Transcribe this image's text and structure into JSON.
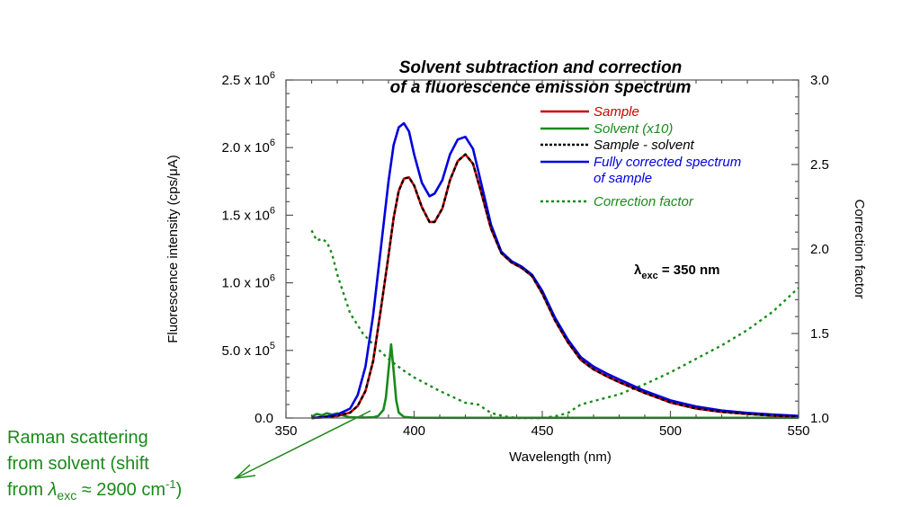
{
  "chart_data": {
    "type": "line",
    "title": [
      "Solvent subtraction and correction",
      "of a fluorescence emission spectrum"
    ],
    "xlabel": "Wavelength (nm)",
    "ylabel": "Fluorescence intensity (cps/μA)",
    "y2label": "Correction factor",
    "xlim": [
      350,
      550
    ],
    "ylim": [
      0,
      2500000
    ],
    "y2lim": [
      1.0,
      3.0
    ],
    "x_ticks": [
      350,
      400,
      450,
      500,
      550
    ],
    "x_tick_labels": [
      "350",
      "400",
      "450",
      "500",
      "550"
    ],
    "y_ticks": [
      0,
      500000,
      1000000,
      1500000,
      2000000,
      2500000
    ],
    "y_tick_labels": [
      {
        "mant": "0.0",
        "exp": ""
      },
      {
        "mant": "5.0 x 10",
        "exp": "5"
      },
      {
        "mant": "1.0 x 10",
        "exp": "6"
      },
      {
        "mant": "1.5 x 10",
        "exp": "6"
      },
      {
        "mant": "2.0 x 10",
        "exp": "6"
      },
      {
        "mant": "2.5 x 10",
        "exp": "6"
      }
    ],
    "y2_ticks": [
      1.0,
      1.5,
      2.0,
      2.5,
      3.0
    ],
    "y2_tick_labels": [
      "1.0",
      "1.5",
      "2.0",
      "2.5",
      "3.0"
    ],
    "grid": false,
    "legend_position": "top-right",
    "series": [
      {
        "name": "Sample",
        "color": "#cc0000",
        "style": "solid",
        "axis": "left",
        "x": [
          360,
          365,
          370,
          375,
          378,
          381,
          384,
          387,
          390,
          392,
          394,
          396,
          398,
          400,
          403,
          406,
          408,
          411,
          414,
          417,
          420,
          423,
          426,
          430,
          434,
          438,
          442,
          446,
          450,
          455,
          460,
          465,
          470,
          475,
          480,
          490,
          500,
          510,
          520,
          530,
          540,
          550
        ],
        "values": [
          0,
          5000,
          15000,
          40000,
          90000,
          200000,
          420000,
          800000,
          1200000,
          1480000,
          1680000,
          1770000,
          1780000,
          1720000,
          1560000,
          1450000,
          1450000,
          1550000,
          1760000,
          1900000,
          1950000,
          1880000,
          1680000,
          1400000,
          1220000,
          1150000,
          1110000,
          1050000,
          920000,
          720000,
          560000,
          430000,
          360000,
          310000,
          265000,
          185000,
          115000,
          70000,
          45000,
          30000,
          18000,
          10000
        ]
      },
      {
        "name": "Solvent (x10)",
        "color": "#1a8a1a",
        "style": "solid",
        "axis": "left",
        "x": [
          360,
          362,
          364,
          366,
          368,
          370,
          372,
          375,
          380,
          384,
          386,
          388,
          389,
          390,
          391,
          392,
          393,
          394,
          396,
          400,
          420,
          450,
          500,
          550
        ],
        "values": [
          10000,
          30000,
          20000,
          35000,
          25000,
          35000,
          20000,
          5000,
          3000,
          5000,
          15000,
          60000,
          150000,
          350000,
          545000,
          350000,
          130000,
          40000,
          8000,
          2000,
          1000,
          1000,
          1000,
          1000
        ]
      },
      {
        "name": "Sample - solvent",
        "color": "#000000",
        "style": "dashed",
        "axis": "left",
        "x": [
          360,
          365,
          370,
          375,
          378,
          381,
          384,
          387,
          390,
          392,
          394,
          396,
          398,
          400,
          403,
          406,
          408,
          411,
          414,
          417,
          420,
          423,
          426,
          430,
          434,
          438,
          442,
          446,
          450,
          455,
          460,
          465,
          470,
          475,
          480,
          490,
          500,
          510,
          520,
          530,
          540,
          550
        ],
        "values": [
          0,
          5000,
          15000,
          40000,
          90000,
          200000,
          420000,
          800000,
          1200000,
          1480000,
          1680000,
          1770000,
          1780000,
          1720000,
          1560000,
          1450000,
          1450000,
          1550000,
          1760000,
          1900000,
          1950000,
          1880000,
          1680000,
          1400000,
          1220000,
          1150000,
          1110000,
          1050000,
          920000,
          720000,
          560000,
          430000,
          360000,
          310000,
          265000,
          185000,
          115000,
          70000,
          45000,
          30000,
          18000,
          10000
        ]
      },
      {
        "name": "Fully corrected spectrum of sample",
        "color": "#0000dd",
        "style": "solid",
        "axis": "left",
        "x": [
          360,
          365,
          370,
          375,
          378,
          381,
          384,
          387,
          390,
          392,
          394,
          396,
          398,
          400,
          403,
          406,
          408,
          411,
          414,
          417,
          420,
          423,
          426,
          430,
          434,
          438,
          442,
          446,
          450,
          455,
          460,
          465,
          470,
          475,
          480,
          490,
          500,
          510,
          520,
          530,
          540,
          550
        ],
        "values": [
          0,
          8000,
          25000,
          70000,
          170000,
          380000,
          760000,
          1250000,
          1750000,
          2020000,
          2150000,
          2180000,
          2120000,
          1950000,
          1740000,
          1640000,
          1660000,
          1760000,
          1950000,
          2060000,
          2080000,
          1990000,
          1750000,
          1430000,
          1230000,
          1160000,
          1120000,
          1060000,
          940000,
          740000,
          580000,
          450000,
          380000,
          330000,
          285000,
          200000,
          130000,
          85000,
          55000,
          38000,
          25000,
          15000
        ]
      },
      {
        "name": "Correction factor",
        "color": "#1a8a1a",
        "style": "dotted",
        "axis": "right",
        "x": [
          360,
          362,
          364,
          366,
          368,
          370,
          375,
          380,
          385,
          390,
          395,
          400,
          410,
          420,
          425,
          430,
          435,
          440,
          450,
          455,
          460,
          465,
          470,
          480,
          490,
          500,
          510,
          520,
          530,
          540,
          550
        ],
        "values": [
          2.11,
          2.05,
          2.06,
          2.04,
          1.97,
          1.85,
          1.62,
          1.5,
          1.42,
          1.35,
          1.29,
          1.24,
          1.16,
          1.09,
          1.08,
          1.03,
          1.01,
          1.0,
          1.0,
          1.01,
          1.03,
          1.08,
          1.1,
          1.14,
          1.2,
          1.27,
          1.35,
          1.43,
          1.52,
          1.63,
          1.77
        ]
      }
    ],
    "legend": [
      {
        "label": "Sample",
        "color": "#cc0000",
        "style": "solid"
      },
      {
        "label": "Solvent (x10)",
        "color": "#1a8a1a",
        "style": "solid"
      },
      {
        "label": "Sample - solvent",
        "color": "#000000",
        "style": "dashed"
      },
      {
        "label": "Fully corrected spectrum",
        "label2": "of sample",
        "color": "#0000dd",
        "style": "solid"
      },
      {
        "label": "Correction factor",
        "color": "#1a8a1a",
        "style": "dotted"
      }
    ],
    "annotations": {
      "excitation": {
        "lambda": "λ",
        "sub": "exc",
        "rest": " = 350 nm"
      },
      "raman": {
        "lines": [
          "Raman scattering",
          "from solvent (shift"
        ],
        "line3_prefix": "from ",
        "lambda": "λ",
        "lambda_sub": "exc",
        "line3_mid": " ≈ 2900 cm",
        "sup": "-1",
        "line3_suffix": ")",
        "color": "#1a8a1a",
        "arrow_from_x": 383,
        "arrow_to_label": true
      }
    }
  }
}
